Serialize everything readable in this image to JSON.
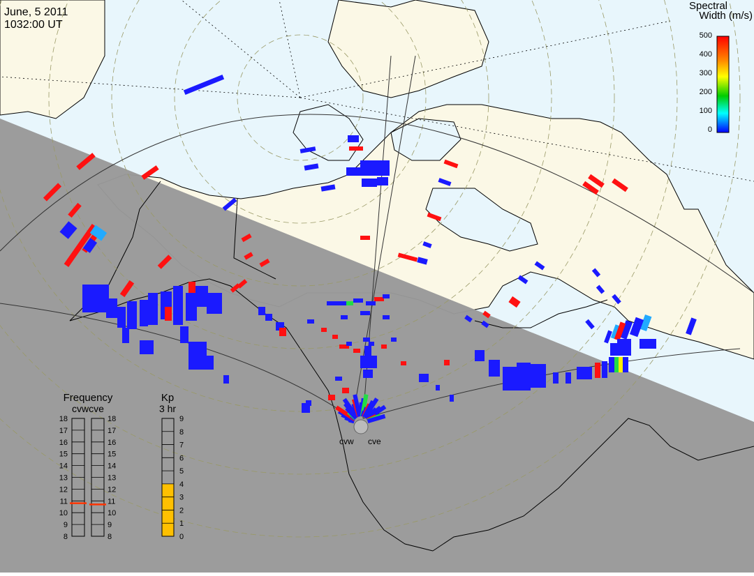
{
  "header": {
    "date": "June, 5 2011",
    "time": "1032:00 UT"
  },
  "colorbar": {
    "title_line1": "Spectral",
    "title_line2": "Width (m/s)",
    "ticks": [
      "500",
      "400",
      "300",
      "200",
      "100",
      "0"
    ],
    "colors": [
      "#ff0000",
      "#ff8800",
      "#ffff00",
      "#00cc00",
      "#00ffff",
      "#0000ff"
    ]
  },
  "radars": {
    "west": "cvw",
    "east": "cve"
  },
  "frequency_panel": {
    "title": "Frequency",
    "subtitle": "cvwcve",
    "scale": [
      "18",
      "17",
      "16",
      "15",
      "14",
      "13",
      "12",
      "11",
      "10",
      "9",
      "8"
    ],
    "cvw_value_mhz": 10.8,
    "cve_value_mhz": 10.7,
    "marker_color": "#ff3300"
  },
  "kp_panel": {
    "title": "Kp",
    "subtitle": "3 hr",
    "scale": [
      "9",
      "8",
      "7",
      "6",
      "5",
      "4",
      "3",
      "2",
      "1",
      "0"
    ],
    "value": 4,
    "fill_color": "#ffc000"
  },
  "map_colors": {
    "night": "#999999",
    "ocean": "#e8f6fc",
    "land": "#fbf8e6"
  }
}
